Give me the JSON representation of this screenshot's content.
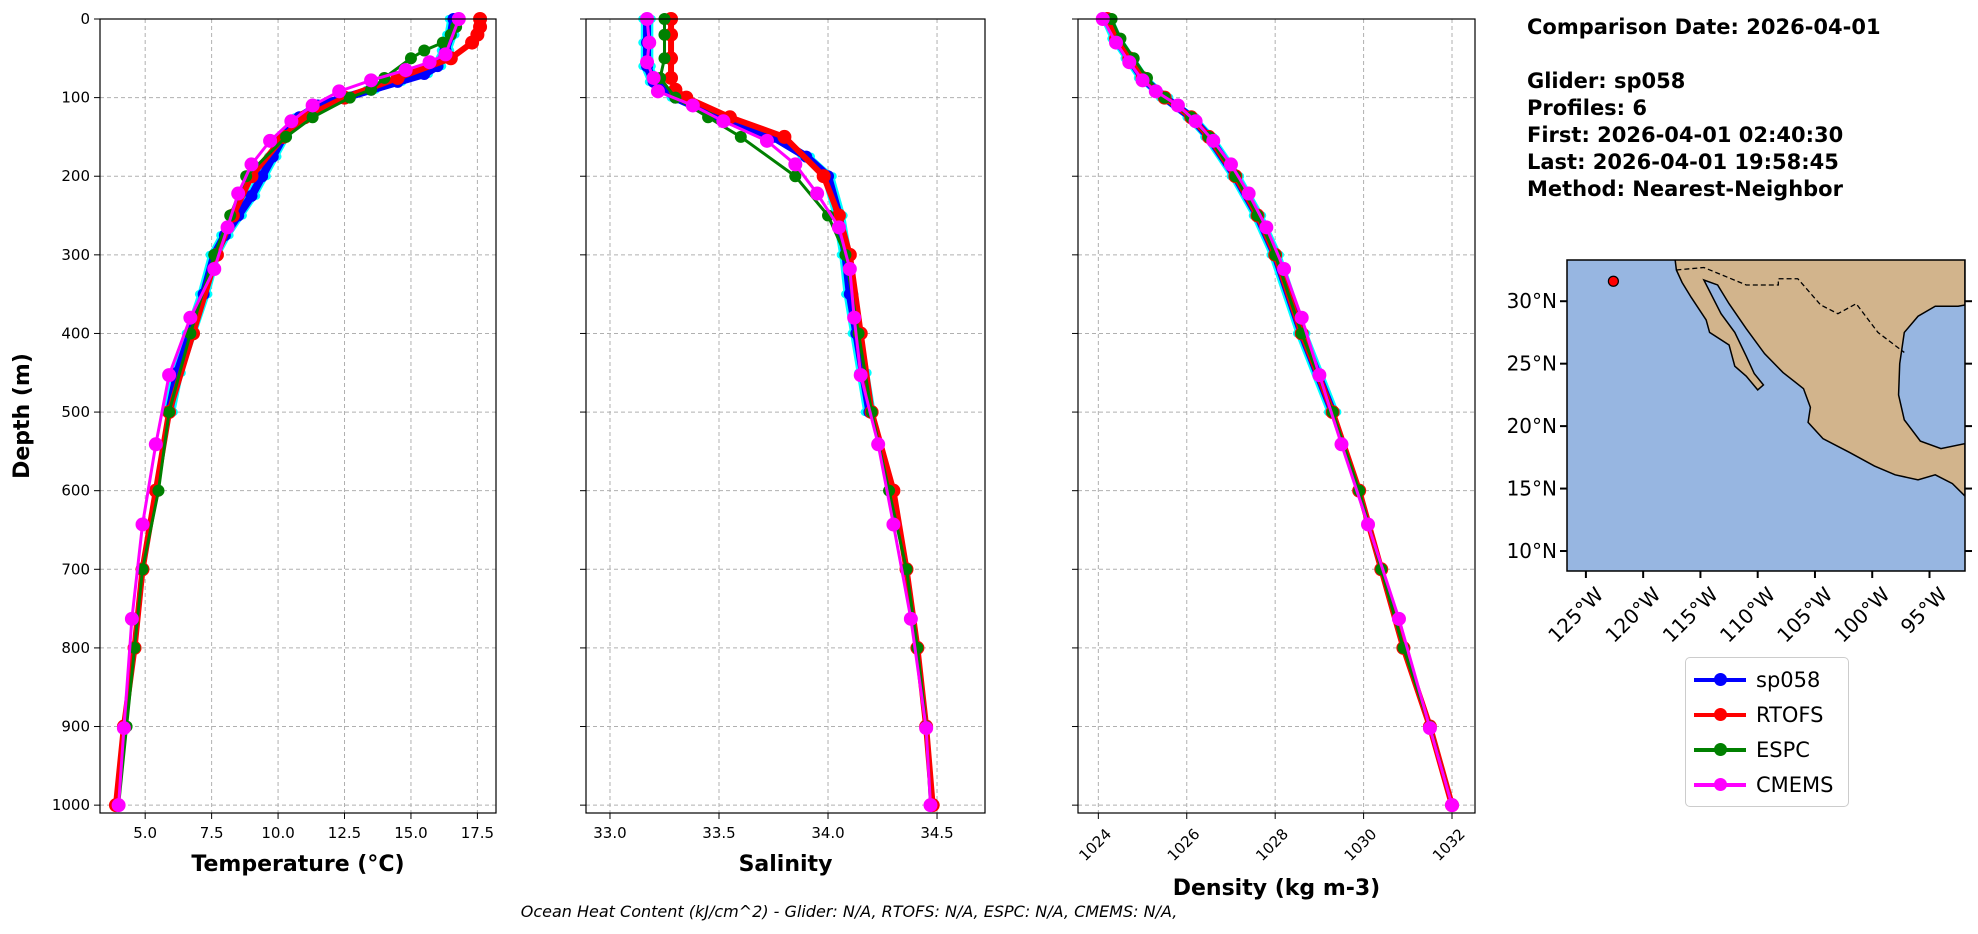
{
  "chart_data": [
    {
      "type": "line",
      "xlabel": "Temperature (°C)",
      "ylabel": "Depth (m)",
      "xlim": [
        3.3,
        18.2
      ],
      "ylim": [
        1010,
        0
      ],
      "xticks": [
        5.0,
        7.5,
        10.0,
        12.5,
        15.0,
        17.5
      ],
      "xtick_labels": [
        "5.0",
        "7.5",
        "10.0",
        "12.5",
        "15.0",
        "17.5"
      ],
      "yticks": [
        0,
        100,
        200,
        300,
        400,
        500,
        600,
        700,
        800,
        900,
        1000
      ],
      "grid": true,
      "series": [
        {
          "name": "sp058",
          "depth": [
            0,
            20,
            40,
            60,
            70,
            80,
            90,
            100,
            110,
            125,
            150,
            175,
            200,
            225,
            250,
            275,
            300,
            350,
            400,
            450,
            500
          ],
          "values": [
            16.6,
            16.5,
            16.3,
            16.0,
            15.5,
            14.5,
            13.5,
            12.5,
            11.5,
            10.8,
            10.2,
            9.8,
            9.4,
            9.0,
            8.5,
            8.0,
            7.6,
            7.2,
            6.7,
            6.2,
            5.9
          ]
        },
        {
          "name": "RTOFS",
          "depth": [
            0,
            10,
            20,
            30,
            50,
            75,
            100,
            125,
            150,
            200,
            250,
            300,
            400,
            500,
            600,
            700,
            800,
            900,
            1000
          ],
          "values": [
            17.6,
            17.6,
            17.5,
            17.3,
            16.5,
            14.5,
            12.5,
            11.0,
            10.2,
            9.0,
            8.3,
            7.7,
            6.8,
            5.9,
            5.4,
            4.9,
            4.6,
            4.2,
            3.9
          ]
        },
        {
          "name": "ESPC",
          "depth": [
            0,
            10,
            20,
            30,
            40,
            50,
            75,
            90,
            100,
            125,
            150,
            200,
            250,
            300,
            400,
            500,
            600,
            700,
            800,
            900,
            1000
          ],
          "values": [
            16.8,
            16.7,
            16.5,
            16.2,
            15.5,
            15.0,
            14.0,
            13.5,
            12.7,
            11.3,
            10.3,
            8.8,
            8.2,
            7.6,
            6.7,
            5.9,
            5.5,
            4.9,
            4.6,
            4.3,
            4.0
          ]
        },
        {
          "name": "CMEMS",
          "depth": [
            0,
            45,
            55,
            65,
            78,
            92,
            110,
            130,
            155,
            185,
            222,
            265,
            318,
            380,
            453,
            541,
            643,
            763,
            902,
            1000
          ],
          "values": [
            16.8,
            16.3,
            15.7,
            14.8,
            13.5,
            12.3,
            11.3,
            10.5,
            9.7,
            9.0,
            8.5,
            8.1,
            7.6,
            6.7,
            5.9,
            5.4,
            4.9,
            4.5,
            4.2,
            4.0
          ]
        }
      ]
    },
    {
      "type": "line",
      "xlabel": "Salinity",
      "xlim": [
        32.89,
        34.72
      ],
      "ylim": [
        1010,
        0
      ],
      "xticks": [
        33.0,
        33.5,
        34.0,
        34.5
      ],
      "xtick_labels": [
        "33.0",
        "33.5",
        "34.0",
        "34.5"
      ],
      "grid": true,
      "series": [
        {
          "name": "sp058",
          "depth": [
            0,
            30,
            60,
            80,
            100,
            125,
            150,
            175,
            200,
            250,
            300,
            350,
            400,
            450,
            500
          ],
          "values": [
            33.17,
            33.17,
            33.17,
            33.2,
            33.3,
            33.5,
            33.75,
            33.9,
            34.0,
            34.05,
            34.08,
            34.1,
            34.13,
            34.16,
            34.19
          ]
        },
        {
          "name": "RTOFS",
          "depth": [
            0,
            20,
            50,
            75,
            90,
            100,
            125,
            150,
            200,
            250,
            300,
            400,
            500,
            600,
            700,
            800,
            900,
            1000
          ],
          "values": [
            33.28,
            33.28,
            33.28,
            33.28,
            33.3,
            33.35,
            33.55,
            33.8,
            33.98,
            34.05,
            34.1,
            34.15,
            34.2,
            34.3,
            34.36,
            34.41,
            34.45,
            34.48
          ]
        },
        {
          "name": "ESPC",
          "depth": [
            0,
            20,
            50,
            75,
            100,
            125,
            150,
            200,
            250,
            300,
            400,
            500,
            600,
            700,
            800,
            900,
            1000
          ],
          "values": [
            33.25,
            33.25,
            33.25,
            33.23,
            33.3,
            33.45,
            33.6,
            33.85,
            34.0,
            34.08,
            34.14,
            34.2,
            34.28,
            34.36,
            34.41,
            34.45,
            34.47
          ]
        },
        {
          "name": "CMEMS",
          "depth": [
            0,
            30,
            55,
            75,
            92,
            110,
            130,
            155,
            185,
            222,
            265,
            318,
            380,
            453,
            541,
            643,
            763,
            902,
            1000
          ],
          "values": [
            33.17,
            33.18,
            33.17,
            33.2,
            33.22,
            33.38,
            33.52,
            33.72,
            33.85,
            33.95,
            34.05,
            34.1,
            34.12,
            34.15,
            34.23,
            34.3,
            34.38,
            34.45,
            34.47
          ]
        }
      ]
    },
    {
      "type": "line",
      "xlabel": "Density (kg m-3)",
      "xlim": [
        1023.54,
        1032.52
      ],
      "ylim": [
        1010,
        0
      ],
      "xticks": [
        1024,
        1026,
        1028,
        1030,
        1032
      ],
      "xtick_labels": [
        "1024",
        "1026",
        "1028",
        "1030",
        "1032"
      ],
      "grid": true,
      "series": [
        {
          "name": "sp058",
          "depth": [
            0,
            25,
            50,
            75,
            100,
            125,
            150,
            200,
            250,
            300,
            400,
            500
          ],
          "values": [
            1024.2,
            1024.4,
            1024.7,
            1025.0,
            1025.5,
            1026.1,
            1026.5,
            1027.1,
            1027.6,
            1028.0,
            1028.6,
            1029.3
          ]
        },
        {
          "name": "RTOFS",
          "depth": [
            0,
            25,
            50,
            75,
            100,
            125,
            150,
            200,
            250,
            300,
            400,
            500,
            600,
            700,
            800,
            900,
            1000
          ],
          "values": [
            1024.2,
            1024.4,
            1024.7,
            1025.0,
            1025.5,
            1026.1,
            1026.5,
            1027.1,
            1027.6,
            1028.0,
            1028.6,
            1029.3,
            1029.9,
            1030.4,
            1030.9,
            1031.5,
            1032.0
          ]
        },
        {
          "name": "ESPC",
          "depth": [
            0,
            25,
            50,
            75,
            100,
            125,
            150,
            200,
            250,
            300,
            400,
            500,
            600,
            700,
            800,
            900,
            1000
          ],
          "values": [
            1024.3,
            1024.5,
            1024.8,
            1025.1,
            1025.5,
            1026.1,
            1026.5,
            1027.1,
            1027.6,
            1028.0,
            1028.6,
            1029.3,
            1029.9,
            1030.4,
            1030.9,
            1031.5,
            1032.0
          ]
        },
        {
          "name": "CMEMS",
          "depth": [
            0,
            30,
            55,
            78,
            92,
            110,
            130,
            155,
            185,
            222,
            265,
            318,
            380,
            453,
            541,
            643,
            763,
            902,
            1000
          ],
          "values": [
            1024.1,
            1024.4,
            1024.7,
            1025.0,
            1025.3,
            1025.8,
            1026.2,
            1026.6,
            1027.0,
            1027.4,
            1027.8,
            1028.2,
            1028.6,
            1029.0,
            1029.5,
            1030.1,
            1030.8,
            1031.5,
            1032.0
          ]
        }
      ]
    }
  ],
  "colors": {
    "sp058": "#0000ff",
    "sp058_profiles": "#00ffff",
    "RTOFS": "#ff0000",
    "ESPC": "#008000",
    "CMEMS": "#ff00ff",
    "ocean": "#97b6e1",
    "land": "#d2b48c"
  },
  "info": {
    "comparison_date": "Comparison Date: 2026-04-01",
    "glider": "Glider: sp058",
    "profiles": "Profiles: 6",
    "first": "First: 2026-04-01 02:40:30",
    "last": "Last: 2026-04-01 19:58:45",
    "method": "Method: Nearest-Neighbor"
  },
  "map": {
    "lon_range": [
      -126.65,
      -91.9
    ],
    "lat_range": [
      8.4,
      33.3
    ],
    "lon_ticks": [
      "125°W",
      "120°W",
      "115°W",
      "110°W",
      "105°W",
      "100°W",
      "95°W"
    ],
    "lat_ticks": [
      "10°N",
      "15°N",
      "20°N",
      "25°N",
      "30°N"
    ],
    "glider_position": {
      "lon": -122.6,
      "lat": 31.6
    }
  },
  "legend": [
    "sp058",
    "RTOFS",
    "ESPC",
    "CMEMS"
  ],
  "footer": "Ocean Heat Content (kJ/cm^2) - Glider: N/A,  RTOFS: N/A,  ESPC: N/A,  CMEMS: N/A,"
}
